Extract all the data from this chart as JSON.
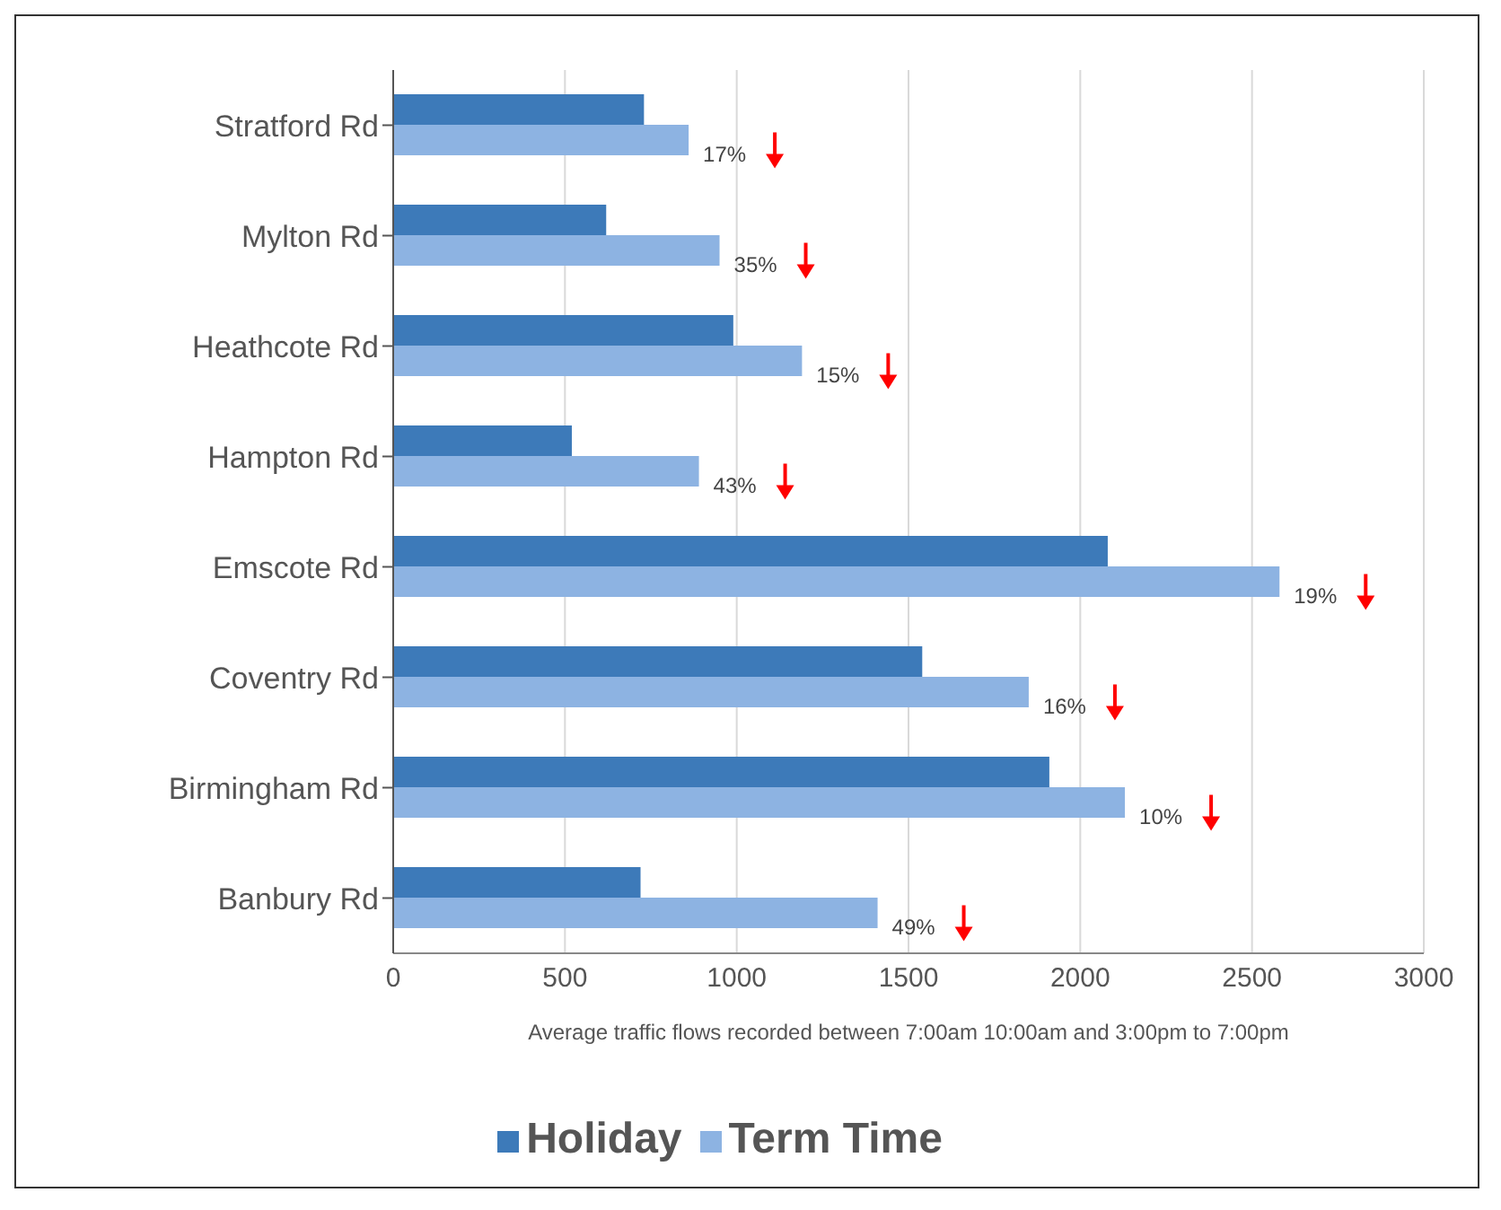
{
  "chart_data": {
    "type": "bar",
    "orientation": "horizontal",
    "xlabel": "Average traffic flows recorded between 7:00am 10:00am and 3:00pm to 7:00pm",
    "categories": [
      "Stratford Rd",
      "Mylton Rd",
      "Heathcote Rd",
      "Hampton Rd",
      "Emscote Rd",
      "Coventry Rd",
      "Birmingham Rd",
      "Banbury Rd"
    ],
    "series": [
      {
        "name": "Holiday",
        "color": "#3d7ab9",
        "values": [
          730,
          620,
          990,
          520,
          2080,
          1540,
          1910,
          720
        ]
      },
      {
        "name": "Term Time",
        "color": "#8db3e2",
        "values": [
          860,
          950,
          1190,
          890,
          2580,
          1850,
          2130,
          1410
        ]
      }
    ],
    "annotations": [
      {
        "text": "17%",
        "x": 860,
        "y": "Stratford Rd"
      },
      {
        "text": "35%",
        "x": 950,
        "y": "Mylton Rd"
      },
      {
        "text": "15%",
        "x": 1190,
        "y": "Heathcote Rd"
      },
      {
        "text": "43%",
        "x": 890,
        "y": "Hampton Rd"
      },
      {
        "text": "19%",
        "x": 2580,
        "y": "Emscote Rd"
      },
      {
        "text": "16%",
        "x": 1850,
        "y": "Coventry Rd"
      },
      {
        "text": "10%",
        "x": 2130,
        "y": "Birmingham Rd"
      },
      {
        "text": "49%",
        "x": 1410,
        "y": "Banbury Rd"
      }
    ],
    "xlim": [
      0,
      3000
    ],
    "xticks": [
      0,
      500,
      1000,
      1500,
      2000,
      2500,
      3000
    ],
    "grid": "x",
    "legend": "bottom"
  }
}
